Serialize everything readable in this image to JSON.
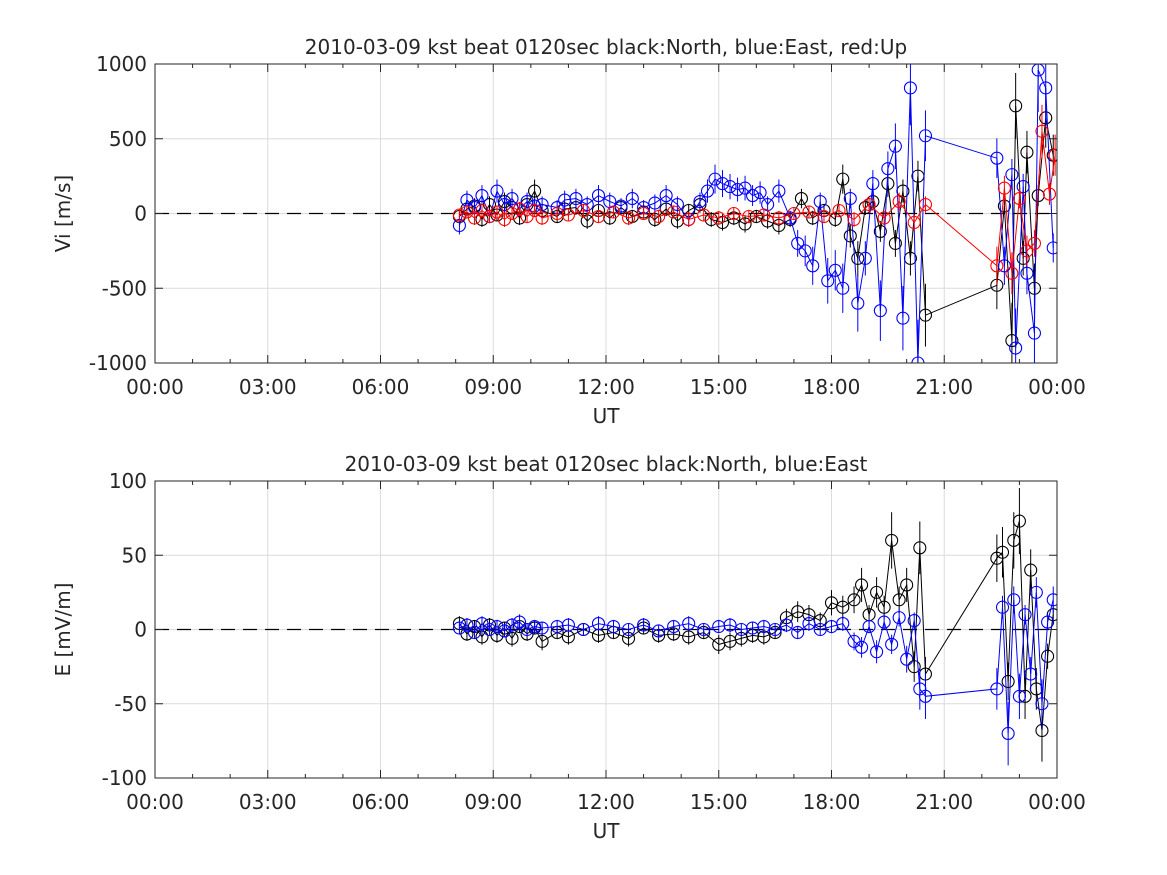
{
  "chart_data": [
    {
      "type": "line",
      "title": "2010-03-09 kst beat 0120sec black:North, blue:East, red:Up",
      "xlabel": "UT",
      "ylabel": "Vi [m/s]",
      "x_unit": "hours UT",
      "xlim": [
        0,
        24
      ],
      "ylim": [
        -1000,
        1000
      ],
      "xticks": [
        0,
        3,
        6,
        9,
        12,
        15,
        18,
        21,
        24
      ],
      "xticklabels": [
        "00:00",
        "03:00",
        "06:00",
        "09:00",
        "12:00",
        "15:00",
        "18:00",
        "21:00",
        "00:00"
      ],
      "yticks": [
        -1000,
        -500,
        0,
        500,
        1000
      ],
      "yticklabels": [
        "-1000",
        "-500",
        "0",
        "500",
        "1000"
      ],
      "grid": true,
      "reference_line": 0,
      "series": [
        {
          "name": "North",
          "color": "#000000",
          "x": [
            8.1,
            8.3,
            8.5,
            8.7,
            8.9,
            9.1,
            9.3,
            9.5,
            9.7,
            9.9,
            10.1,
            10.3,
            10.7,
            10.9,
            11.2,
            11.5,
            11.8,
            12.1,
            12.4,
            12.7,
            13.0,
            13.3,
            13.6,
            13.9,
            14.2,
            14.5,
            14.8,
            15.1,
            15.4,
            15.7,
            16.0,
            16.3,
            16.6,
            16.9,
            17.2,
            17.5,
            17.8,
            18.1,
            18.3,
            18.5,
            18.7,
            18.9,
            19.1,
            19.3,
            19.5,
            19.7,
            19.9,
            20.1,
            20.3,
            20.5,
            22.4,
            22.6,
            22.8,
            22.9,
            23.1,
            23.2,
            23.4,
            23.5,
            23.7,
            23.9
          ],
          "y": [
            -20,
            30,
            50,
            -40,
            60,
            -10,
            80,
            40,
            -30,
            60,
            150,
            20,
            -20,
            30,
            40,
            -50,
            20,
            -30,
            40,
            -20,
            10,
            -40,
            30,
            -50,
            20,
            60,
            -40,
            -60,
            -30,
            -70,
            -20,
            -50,
            -80,
            -40,
            100,
            -30,
            20,
            -40,
            230,
            -150,
            -300,
            40,
            80,
            -120,
            200,
            -200,
            150,
            -300,
            250,
            -680,
            -480,
            50,
            -850,
            720,
            -300,
            410,
            -500,
            120,
            640,
            390
          ]
        },
        {
          "name": "East",
          "color": "#0000ff",
          "x": [
            8.1,
            8.3,
            8.5,
            8.7,
            8.9,
            9.1,
            9.3,
            9.5,
            9.7,
            9.9,
            10.1,
            10.3,
            10.7,
            10.9,
            11.2,
            11.5,
            11.8,
            12.1,
            12.4,
            12.7,
            13.0,
            13.3,
            13.6,
            13.9,
            14.2,
            14.5,
            14.7,
            14.9,
            15.1,
            15.3,
            15.5,
            15.7,
            15.9,
            16.1,
            16.3,
            16.6,
            16.9,
            17.1,
            17.3,
            17.5,
            17.7,
            17.9,
            18.1,
            18.3,
            18.5,
            18.7,
            18.9,
            19.1,
            19.3,
            19.5,
            19.7,
            19.9,
            20.1,
            20.3,
            20.5,
            22.4,
            22.6,
            22.8,
            22.9,
            23.1,
            23.2,
            23.4,
            23.5,
            23.7,
            23.9
          ],
          "y": [
            -80,
            90,
            40,
            120,
            -20,
            150,
            60,
            100,
            30,
            80,
            50,
            60,
            40,
            90,
            100,
            60,
            120,
            80,
            50,
            100,
            40,
            70,
            120,
            60,
            -40,
            80,
            150,
            230,
            200,
            180,
            160,
            170,
            120,
            140,
            60,
            150,
            -30,
            -200,
            -250,
            -350,
            80,
            -450,
            -380,
            -500,
            100,
            -600,
            -300,
            200,
            -650,
            300,
            450,
            -700,
            840,
            -1000,
            520,
            370,
            -350,
            260,
            -900,
            180,
            -400,
            -800,
            960,
            840,
            -230
          ]
        },
        {
          "name": "Up",
          "color": "#ff0000",
          "x": [
            8.1,
            8.3,
            8.5,
            8.7,
            8.9,
            9.1,
            9.3,
            9.5,
            9.7,
            9.9,
            10.1,
            10.3,
            10.7,
            11.0,
            11.4,
            11.8,
            12.2,
            12.6,
            13.0,
            13.4,
            13.8,
            14.2,
            14.6,
            15.0,
            15.4,
            15.8,
            16.2,
            16.6,
            17.0,
            17.4,
            17.8,
            18.2,
            18.6,
            19.0,
            19.4,
            19.8,
            20.2,
            20.5,
            22.4,
            22.6,
            22.8,
            23.0,
            23.2,
            23.4,
            23.6,
            23.8,
            23.95
          ],
          "y": [
            -10,
            10,
            -30,
            20,
            -20,
            10,
            -40,
            0,
            30,
            -20,
            20,
            -30,
            0,
            -10,
            20,
            -20,
            10,
            -30,
            0,
            -20,
            10,
            -40,
            -10,
            -30,
            0,
            -20,
            -10,
            -30,
            0,
            10,
            -20,
            20,
            -40,
            60,
            -30,
            80,
            -60,
            60,
            -350,
            170,
            -400,
            100,
            -250,
            -200,
            550,
            130,
            390
          ]
        }
      ]
    },
    {
      "type": "line",
      "title": "2010-03-09 kst beat 0120sec black:North, blue:East",
      "xlabel": "UT",
      "ylabel": "E [mV/m]",
      "x_unit": "hours UT",
      "xlim": [
        0,
        24
      ],
      "ylim": [
        -100,
        100
      ],
      "xticks": [
        0,
        3,
        6,
        9,
        12,
        15,
        18,
        21,
        24
      ],
      "xticklabels": [
        "00:00",
        "03:00",
        "06:00",
        "09:00",
        "12:00",
        "15:00",
        "18:00",
        "21:00",
        "00:00"
      ],
      "yticks": [
        -100,
        -50,
        0,
        50,
        100
      ],
      "yticklabels": [
        "-100",
        "-50",
        "0",
        "50",
        "100"
      ],
      "grid": true,
      "reference_line": 0,
      "series": [
        {
          "name": "North",
          "color": "#000000",
          "x": [
            8.1,
            8.3,
            8.5,
            8.7,
            8.9,
            9.1,
            9.3,
            9.5,
            9.7,
            9.9,
            10.1,
            10.3,
            10.7,
            11.0,
            11.4,
            11.8,
            12.2,
            12.6,
            13.0,
            13.4,
            13.8,
            14.2,
            14.6,
            15.0,
            15.3,
            15.6,
            15.9,
            16.2,
            16.5,
            16.8,
            17.1,
            17.4,
            17.7,
            18.0,
            18.3,
            18.6,
            18.8,
            19.0,
            19.2,
            19.4,
            19.6,
            19.8,
            20.0,
            20.2,
            20.35,
            20.5,
            22.4,
            22.55,
            22.7,
            22.85,
            23.0,
            23.15,
            23.3,
            23.45,
            23.6,
            23.75,
            23.9
          ],
          "y": [
            4,
            -3,
            2,
            -5,
            3,
            -4,
            1,
            -6,
            2,
            -3,
            1,
            -8,
            -2,
            -5,
            0,
            -4,
            -2,
            -6,
            1,
            -4,
            -3,
            -5,
            -2,
            -10,
            -8,
            -6,
            -4,
            -5,
            -2,
            8,
            12,
            10,
            6,
            18,
            15,
            20,
            30,
            10,
            25,
            15,
            60,
            20,
            30,
            -25,
            55,
            -30,
            48,
            52,
            -35,
            60,
            73,
            -45,
            40,
            -40,
            -68,
            -18,
            10
          ]
        },
        {
          "name": "East",
          "color": "#0000ff",
          "x": [
            8.1,
            8.3,
            8.5,
            8.7,
            8.9,
            9.1,
            9.3,
            9.5,
            9.7,
            9.9,
            10.1,
            10.3,
            10.7,
            11.0,
            11.4,
            11.8,
            12.2,
            12.6,
            13.0,
            13.4,
            13.8,
            14.2,
            14.6,
            15.0,
            15.3,
            15.6,
            15.9,
            16.2,
            16.5,
            16.8,
            17.1,
            17.4,
            17.7,
            18.0,
            18.3,
            18.6,
            18.8,
            19.0,
            19.2,
            19.4,
            19.6,
            19.8,
            20.0,
            20.2,
            20.35,
            20.5,
            22.4,
            22.55,
            22.7,
            22.85,
            23.0,
            23.15,
            23.3,
            23.45,
            23.6,
            23.75,
            23.9
          ],
          "y": [
            1,
            3,
            -2,
            4,
            0,
            2,
            -1,
            3,
            5,
            0,
            2,
            1,
            2,
            3,
            0,
            4,
            2,
            0,
            3,
            -1,
            2,
            4,
            0,
            2,
            3,
            0,
            1,
            2,
            0,
            3,
            -2,
            4,
            0,
            2,
            4,
            -8,
            -12,
            2,
            -15,
            5,
            -10,
            8,
            -20,
            6,
            -40,
            -45,
            -40,
            15,
            -70,
            20,
            -45,
            10,
            -30,
            25,
            -50,
            5,
            20
          ]
        }
      ]
    }
  ]
}
